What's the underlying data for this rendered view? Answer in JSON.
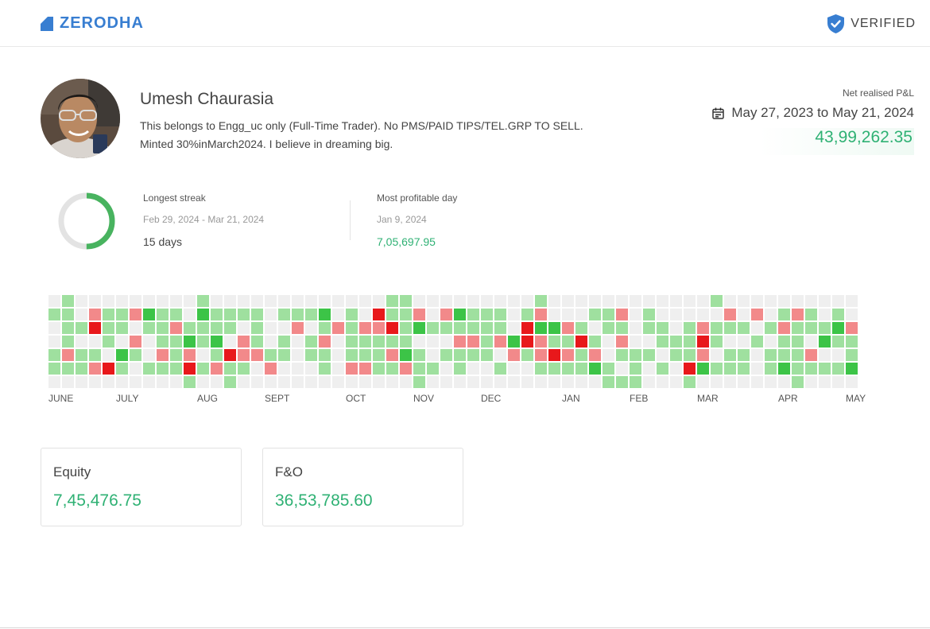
{
  "header": {
    "brand": "ZERODHA",
    "verified_label": "VERIFIED",
    "brand_color": "#387ed1"
  },
  "profile": {
    "name": "Umesh Chaurasia",
    "bio_line1": "This belongs to Engg_uc only (Full-Time Trader). No PMS/PAID TIPS/TEL.GRP TO SELL.",
    "bio_line2": "Minted 30%inMarch2024. I believe in dreaming big."
  },
  "pnl": {
    "label": "Net realised P&L",
    "date_range": "May 27, 2023 to May 21, 2024",
    "value": "43,99,262.35"
  },
  "stats": {
    "streak_label": "Longest streak",
    "streak_range": "Feb 29, 2024 - Mar 21, 2024",
    "streak_value": "15 days",
    "streak_progress": 0.5,
    "best_day_label": "Most profitable day",
    "best_day_date": "Jan 9, 2024",
    "best_day_value": "7,05,697.95"
  },
  "heatmap": {
    "months": [
      "JUNE",
      "JULY",
      "AUG",
      "SEPT",
      "OCT",
      "NOV",
      "DEC",
      "JAN",
      "FEB",
      "MAR",
      "APR",
      "MAY"
    ],
    "legend_colors": {
      "empty": "#efefef",
      "profit_light": "#9fe09f",
      "profit_strong": "#3cc447",
      "loss_light": "#f2898a",
      "loss_strong": "#e8181b"
    }
  },
  "cards": [
    {
      "title": "Equity",
      "value": "7,45,476.75"
    },
    {
      "title": "F&O",
      "value": "36,53,785.60"
    }
  ]
}
